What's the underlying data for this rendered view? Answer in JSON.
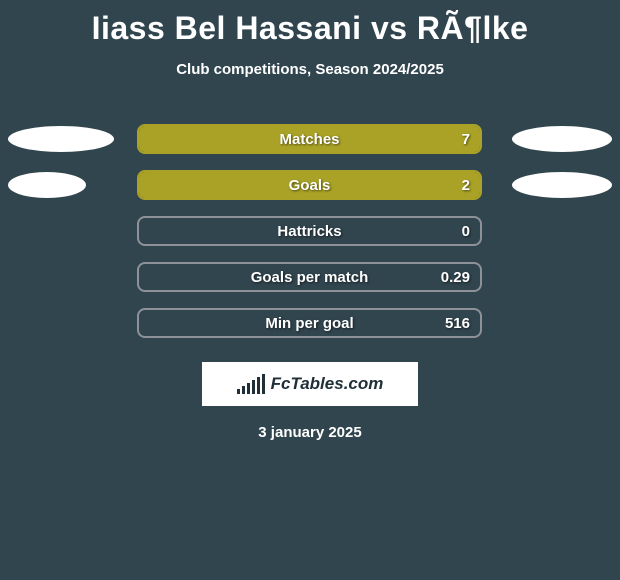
{
  "title": "Iiass Bel Hassani vs RÃ¶lke",
  "subtitle": "Club competitions, Season 2024/2025",
  "date": "3 january 2025",
  "logo_text": "FcTables.com",
  "colors": {
    "background": "#31454f",
    "bar_fill": "#a9a227",
    "bar_border_filled": "#a9a227",
    "bar_border_empty": "#8e9298",
    "oval": "#ffffff",
    "text": "#ffffff",
    "shadow": "rgba(0,0,0,0.55)"
  },
  "ovals": {
    "row0_left_width": 106,
    "row0_right_width": 100,
    "row1_left_width": 78,
    "row1_right_width": 100
  },
  "rows": [
    {
      "label": "Matches",
      "value": "7",
      "fill_pct": 100,
      "has_left_oval": true,
      "has_right_oval": true
    },
    {
      "label": "Goals",
      "value": "2",
      "fill_pct": 100,
      "has_left_oval": true,
      "has_right_oval": true
    },
    {
      "label": "Hattricks",
      "value": "0",
      "fill_pct": 0,
      "has_left_oval": false,
      "has_right_oval": false
    },
    {
      "label": "Goals per match",
      "value": "0.29",
      "fill_pct": 0,
      "has_left_oval": false,
      "has_right_oval": false
    },
    {
      "label": "Min per goal",
      "value": "516",
      "fill_pct": 0,
      "has_left_oval": false,
      "has_right_oval": false
    }
  ],
  "logo_bar_heights": [
    5,
    8,
    11,
    14,
    17,
    20
  ]
}
